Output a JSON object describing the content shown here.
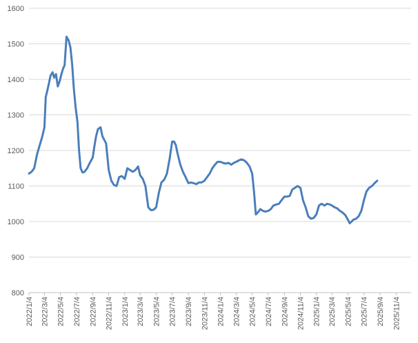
{
  "chart_data": {
    "type": "line",
    "title": "",
    "xlabel": "",
    "ylabel": "",
    "ylim": [
      800,
      1600
    ],
    "y_ticks": [
      800,
      900,
      1000,
      1100,
      1200,
      1300,
      1400,
      1500,
      1600
    ],
    "grid": "horizontal",
    "legend": "none",
    "x_tick_labels": [
      "2022/1/4",
      "2022/3/4",
      "2022/5/4",
      "2022/7/4",
      "2022/9/4",
      "2022/11/4",
      "2023/1/4",
      "2023/3/4",
      "2023/5/4",
      "2023/7/4",
      "2023/9/4",
      "2023/11/4",
      "2024/1/4",
      "2024/3/4",
      "2024/5/4",
      "2024/7/4",
      "2024/9/4",
      "2024/11/4",
      "2025/1/4",
      "2025/3/4",
      "2025/5/4",
      "2025/7/4",
      "2025/9/4",
      "2025/11/4"
    ],
    "series": [
      {
        "color": "#4a7ebb",
        "points": [
          [
            "2022/1/4",
            1135
          ],
          [
            "2022/1/14",
            1140
          ],
          [
            "2022/1/24",
            1150
          ],
          [
            "2022/2/4",
            1190
          ],
          [
            "2022/2/14",
            1215
          ],
          [
            "2022/2/24",
            1240
          ],
          [
            "2022/3/4",
            1265
          ],
          [
            "2022/3/9",
            1350
          ],
          [
            "2022/3/14",
            1365
          ],
          [
            "2022/3/20",
            1385
          ],
          [
            "2022/3/27",
            1410
          ],
          [
            "2022/4/4",
            1420
          ],
          [
            "2022/4/10",
            1405
          ],
          [
            "2022/4/17",
            1415
          ],
          [
            "2022/4/24",
            1380
          ],
          [
            "2022/5/1",
            1395
          ],
          [
            "2022/5/8",
            1415
          ],
          [
            "2022/5/14",
            1430
          ],
          [
            "2022/5/20",
            1440
          ],
          [
            "2022/5/27",
            1520
          ],
          [
            "2022/6/4",
            1510
          ],
          [
            "2022/6/11",
            1490
          ],
          [
            "2022/6/18",
            1440
          ],
          [
            "2022/6/24",
            1375
          ],
          [
            "2022/7/1",
            1320
          ],
          [
            "2022/7/8",
            1280
          ],
          [
            "2022/7/14",
            1200
          ],
          [
            "2022/7/20",
            1150
          ],
          [
            "2022/7/27",
            1138
          ],
          [
            "2022/8/4",
            1140
          ],
          [
            "2022/8/14",
            1150
          ],
          [
            "2022/8/24",
            1165
          ],
          [
            "2022/9/4",
            1180
          ],
          [
            "2022/9/10",
            1210
          ],
          [
            "2022/9/17",
            1240
          ],
          [
            "2022/9/24",
            1260
          ],
          [
            "2022/10/4",
            1265
          ],
          [
            "2022/10/11",
            1240
          ],
          [
            "2022/10/18",
            1230
          ],
          [
            "2022/10/25",
            1220
          ],
          [
            "2022/11/4",
            1145
          ],
          [
            "2022/11/14",
            1115
          ],
          [
            "2022/11/24",
            1103
          ],
          [
            "2022/12/4",
            1100
          ],
          [
            "2022/12/14",
            1125
          ],
          [
            "2022/12/24",
            1128
          ],
          [
            "2023/1/4",
            1120
          ],
          [
            "2023/1/14",
            1150
          ],
          [
            "2023/1/24",
            1145
          ],
          [
            "2023/2/4",
            1140
          ],
          [
            "2023/2/14",
            1145
          ],
          [
            "2023/2/24",
            1155
          ],
          [
            "2023/3/4",
            1130
          ],
          [
            "2023/3/14",
            1120
          ],
          [
            "2023/3/24",
            1100
          ],
          [
            "2023/4/4",
            1040
          ],
          [
            "2023/4/14",
            1032
          ],
          [
            "2023/4/24",
            1033
          ],
          [
            "2023/5/4",
            1040
          ],
          [
            "2023/5/14",
            1080
          ],
          [
            "2023/5/24",
            1110
          ],
          [
            "2023/6/4",
            1118
          ],
          [
            "2023/6/14",
            1135
          ],
          [
            "2023/6/24",
            1175
          ],
          [
            "2023/7/4",
            1225
          ],
          [
            "2023/7/11",
            1225
          ],
          [
            "2023/7/18",
            1215
          ],
          [
            "2023/7/25",
            1190
          ],
          [
            "2023/8/4",
            1160
          ],
          [
            "2023/8/14",
            1140
          ],
          [
            "2023/8/24",
            1125
          ],
          [
            "2023/9/4",
            1108
          ],
          [
            "2023/9/14",
            1110
          ],
          [
            "2023/9/24",
            1108
          ],
          [
            "2023/10/4",
            1105
          ],
          [
            "2023/10/14",
            1110
          ],
          [
            "2023/10/24",
            1110
          ],
          [
            "2023/11/4",
            1115
          ],
          [
            "2023/11/14",
            1125
          ],
          [
            "2023/11/24",
            1135
          ],
          [
            "2023/12/4",
            1150
          ],
          [
            "2023/12/14",
            1160
          ],
          [
            "2023/12/24",
            1168
          ],
          [
            "2024/1/4",
            1168
          ],
          [
            "2024/1/14",
            1165
          ],
          [
            "2024/1/24",
            1163
          ],
          [
            "2024/2/4",
            1165
          ],
          [
            "2024/2/14",
            1160
          ],
          [
            "2024/2/24",
            1165
          ],
          [
            "2024/3/4",
            1168
          ],
          [
            "2024/3/14",
            1172
          ],
          [
            "2024/3/24",
            1175
          ],
          [
            "2024/4/4",
            1172
          ],
          [
            "2024/4/14",
            1165
          ],
          [
            "2024/4/24",
            1155
          ],
          [
            "2024/5/4",
            1135
          ],
          [
            "2024/5/11",
            1085
          ],
          [
            "2024/5/18",
            1020
          ],
          [
            "2024/5/25",
            1025
          ],
          [
            "2024/6/4",
            1035
          ],
          [
            "2024/6/14",
            1030
          ],
          [
            "2024/6/24",
            1028
          ],
          [
            "2024/7/4",
            1030
          ],
          [
            "2024/7/14",
            1035
          ],
          [
            "2024/7/24",
            1045
          ],
          [
            "2024/8/4",
            1048
          ],
          [
            "2024/8/14",
            1050
          ],
          [
            "2024/8/24",
            1060
          ],
          [
            "2024/9/4",
            1070
          ],
          [
            "2024/9/14",
            1070
          ],
          [
            "2024/9/24",
            1072
          ],
          [
            "2024/10/4",
            1090
          ],
          [
            "2024/10/14",
            1095
          ],
          [
            "2024/10/24",
            1100
          ],
          [
            "2024/11/4",
            1095
          ],
          [
            "2024/11/14",
            1060
          ],
          [
            "2024/11/24",
            1040
          ],
          [
            "2024/12/4",
            1015
          ],
          [
            "2024/12/14",
            1008
          ],
          [
            "2024/12/24",
            1010
          ],
          [
            "2025/1/4",
            1020
          ],
          [
            "2025/1/14",
            1045
          ],
          [
            "2025/1/24",
            1050
          ],
          [
            "2025/2/4",
            1045
          ],
          [
            "2025/2/14",
            1050
          ],
          [
            "2025/2/24",
            1048
          ],
          [
            "2025/3/4",
            1045
          ],
          [
            "2025/3/14",
            1040
          ],
          [
            "2025/3/24",
            1037
          ],
          [
            "2025/4/4",
            1030
          ],
          [
            "2025/4/14",
            1025
          ],
          [
            "2025/4/24",
            1018
          ],
          [
            "2025/5/4",
            1005
          ],
          [
            "2025/5/11",
            995
          ],
          [
            "2025/5/18",
            1000
          ],
          [
            "2025/5/25",
            1005
          ],
          [
            "2025/6/4",
            1008
          ],
          [
            "2025/6/14",
            1015
          ],
          [
            "2025/6/24",
            1030
          ],
          [
            "2025/7/4",
            1060
          ],
          [
            "2025/7/14",
            1085
          ],
          [
            "2025/7/24",
            1095
          ],
          [
            "2025/8/4",
            1100
          ],
          [
            "2025/8/14",
            1108
          ],
          [
            "2025/8/24",
            1115
          ]
        ]
      }
    ]
  }
}
